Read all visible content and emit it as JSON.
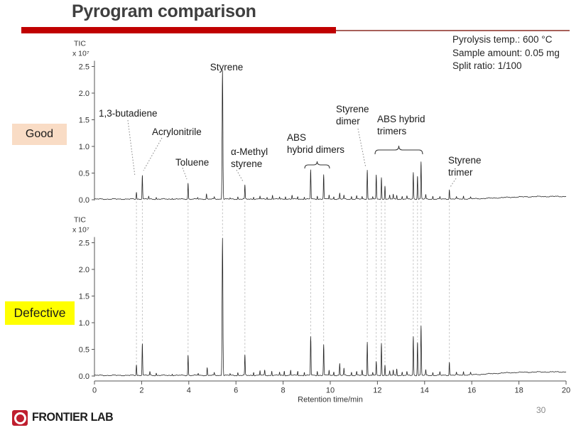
{
  "slide": {
    "title": "Pyrogram comparison",
    "page_number": "30",
    "brand": "FRONTIER LAB"
  },
  "conditions": [
    "Pyrolysis temp.: 600 °C",
    "Sample amount: 0.05 mg",
    "Split ratio: 1/100"
  ],
  "labels": {
    "good": "Good",
    "defective": "Defective"
  },
  "colors": {
    "accent_red": "#c00000",
    "good_bg": "#f9dcc5",
    "defective_bg": "#ffff00"
  },
  "chart_data": {
    "type": "line",
    "title": "Pyrogram comparison",
    "xlabel": "Retention time/min",
    "ylabel": "TIC",
    "y_unit": "x 10⁷",
    "xlim": [
      0,
      20
    ],
    "ylim": [
      0,
      2.5
    ],
    "x_ticks": [
      "0",
      "2",
      "4",
      "6",
      "8",
      "10",
      "12",
      "14",
      "16",
      "18",
      "20"
    ],
    "y_ticks": [
      "0.0",
      "0.5",
      "1.0",
      "1.5",
      "2.0",
      "2.5"
    ],
    "grid": false,
    "legend_position": "none",
    "series": [
      {
        "name": "Good",
        "peaks": [
          [
            1.78,
            0.13
          ],
          [
            2.03,
            0.45
          ],
          [
            2.3,
            0.05
          ],
          [
            2.62,
            0.03
          ],
          [
            3.3,
            0.02
          ],
          [
            3.97,
            0.3
          ],
          [
            4.38,
            0.03
          ],
          [
            4.75,
            0.1
          ],
          [
            5.08,
            0.04
          ],
          [
            5.43,
            2.42
          ],
          [
            5.75,
            0.02
          ],
          [
            6.08,
            0.04
          ],
          [
            6.38,
            0.26
          ],
          [
            6.75,
            0.04
          ],
          [
            7.02,
            0.06
          ],
          [
            7.32,
            0.04
          ],
          [
            7.55,
            0.08
          ],
          [
            7.85,
            0.04
          ],
          [
            8.1,
            0.05
          ],
          [
            8.38,
            0.07
          ],
          [
            8.62,
            0.05
          ],
          [
            8.9,
            0.04
          ],
          [
            9.17,
            0.55
          ],
          [
            9.45,
            0.06
          ],
          [
            9.72,
            0.46
          ],
          [
            9.95,
            0.08
          ],
          [
            10.15,
            0.05
          ],
          [
            10.4,
            0.11
          ],
          [
            10.58,
            0.07
          ],
          [
            10.9,
            0.05
          ],
          [
            11.12,
            0.06
          ],
          [
            11.35,
            0.05
          ],
          [
            11.57,
            0.55
          ],
          [
            11.8,
            0.05
          ],
          [
            11.95,
            0.44
          ],
          [
            12.17,
            0.4
          ],
          [
            12.32,
            0.25
          ],
          [
            12.52,
            0.07
          ],
          [
            12.67,
            0.09
          ],
          [
            12.82,
            0.07
          ],
          [
            13.05,
            0.05
          ],
          [
            13.25,
            0.05
          ],
          [
            13.52,
            0.5
          ],
          [
            13.7,
            0.43
          ],
          [
            13.85,
            0.7
          ],
          [
            14.05,
            0.08
          ],
          [
            14.35,
            0.05
          ],
          [
            14.65,
            0.04
          ],
          [
            15.05,
            0.18
          ],
          [
            15.35,
            0.04
          ],
          [
            15.65,
            0.05
          ],
          [
            15.95,
            0.03
          ]
        ]
      },
      {
        "name": "Defective",
        "peaks": [
          [
            1.78,
            0.2
          ],
          [
            2.03,
            0.6
          ],
          [
            2.35,
            0.07
          ],
          [
            2.62,
            0.04
          ],
          [
            3.3,
            0.03
          ],
          [
            3.97,
            0.38
          ],
          [
            4.4,
            0.04
          ],
          [
            4.78,
            0.14
          ],
          [
            5.08,
            0.05
          ],
          [
            5.43,
            2.58
          ],
          [
            5.75,
            0.03
          ],
          [
            6.08,
            0.05
          ],
          [
            6.38,
            0.38
          ],
          [
            6.75,
            0.06
          ],
          [
            7.02,
            0.09
          ],
          [
            7.22,
            0.1
          ],
          [
            7.52,
            0.08
          ],
          [
            7.85,
            0.06
          ],
          [
            8.05,
            0.08
          ],
          [
            8.32,
            0.1
          ],
          [
            8.62,
            0.08
          ],
          [
            8.9,
            0.06
          ],
          [
            9.17,
            0.73
          ],
          [
            9.45,
            0.08
          ],
          [
            9.72,
            0.58
          ],
          [
            9.95,
            0.1
          ],
          [
            10.15,
            0.07
          ],
          [
            10.4,
            0.22
          ],
          [
            10.58,
            0.13
          ],
          [
            10.9,
            0.06
          ],
          [
            11.12,
            0.07
          ],
          [
            11.35,
            0.1
          ],
          [
            11.57,
            0.63
          ],
          [
            11.8,
            0.06
          ],
          [
            11.95,
            0.25
          ],
          [
            12.17,
            0.6
          ],
          [
            12.32,
            0.2
          ],
          [
            12.52,
            0.08
          ],
          [
            12.67,
            0.1
          ],
          [
            12.82,
            0.12
          ],
          [
            13.05,
            0.06
          ],
          [
            13.25,
            0.06
          ],
          [
            13.52,
            0.73
          ],
          [
            13.7,
            0.62
          ],
          [
            13.85,
            0.93
          ],
          [
            14.05,
            0.1
          ],
          [
            14.35,
            0.05
          ],
          [
            14.65,
            0.06
          ],
          [
            15.05,
            0.25
          ],
          [
            15.35,
            0.05
          ],
          [
            15.65,
            0.06
          ],
          [
            15.95,
            0.04
          ]
        ]
      }
    ],
    "annotations": [
      {
        "id": "butadiene",
        "lines": [
          "1,3-butadiene"
        ],
        "t": 1.78
      },
      {
        "id": "acrylonitrile",
        "lines": [
          "Acrylonitrile"
        ],
        "t": 2.03
      },
      {
        "id": "toluene",
        "lines": [
          "Toluene"
        ],
        "t": 3.97
      },
      {
        "id": "styrene",
        "lines": [
          "Styrene"
        ],
        "t": 5.43
      },
      {
        "id": "amethylstyrene",
        "lines": [
          "α-Methyl",
          "styrene"
        ],
        "t": 6.38
      },
      {
        "id": "abs-dimers",
        "lines": [
          "ABS",
          "hybrid dimers"
        ],
        "t_range": [
          9.17,
          9.72
        ]
      },
      {
        "id": "styrene-dimer",
        "lines": [
          "Styrene",
          "dimer"
        ],
        "t": 11.57
      },
      {
        "id": "abs-trimers",
        "lines": [
          "ABS hybrid",
          "trimers"
        ],
        "t_range": [
          11.95,
          13.85
        ]
      },
      {
        "id": "styrene-trimer",
        "lines": [
          "Styrene",
          "trimer"
        ],
        "t": 15.05
      }
    ],
    "dashed_guides": [
      1.78,
      2.03,
      3.97,
      5.43,
      6.38,
      9.17,
      9.72,
      11.57,
      11.95,
      12.17,
      12.32,
      13.52,
      13.7,
      13.85,
      15.05
    ]
  }
}
